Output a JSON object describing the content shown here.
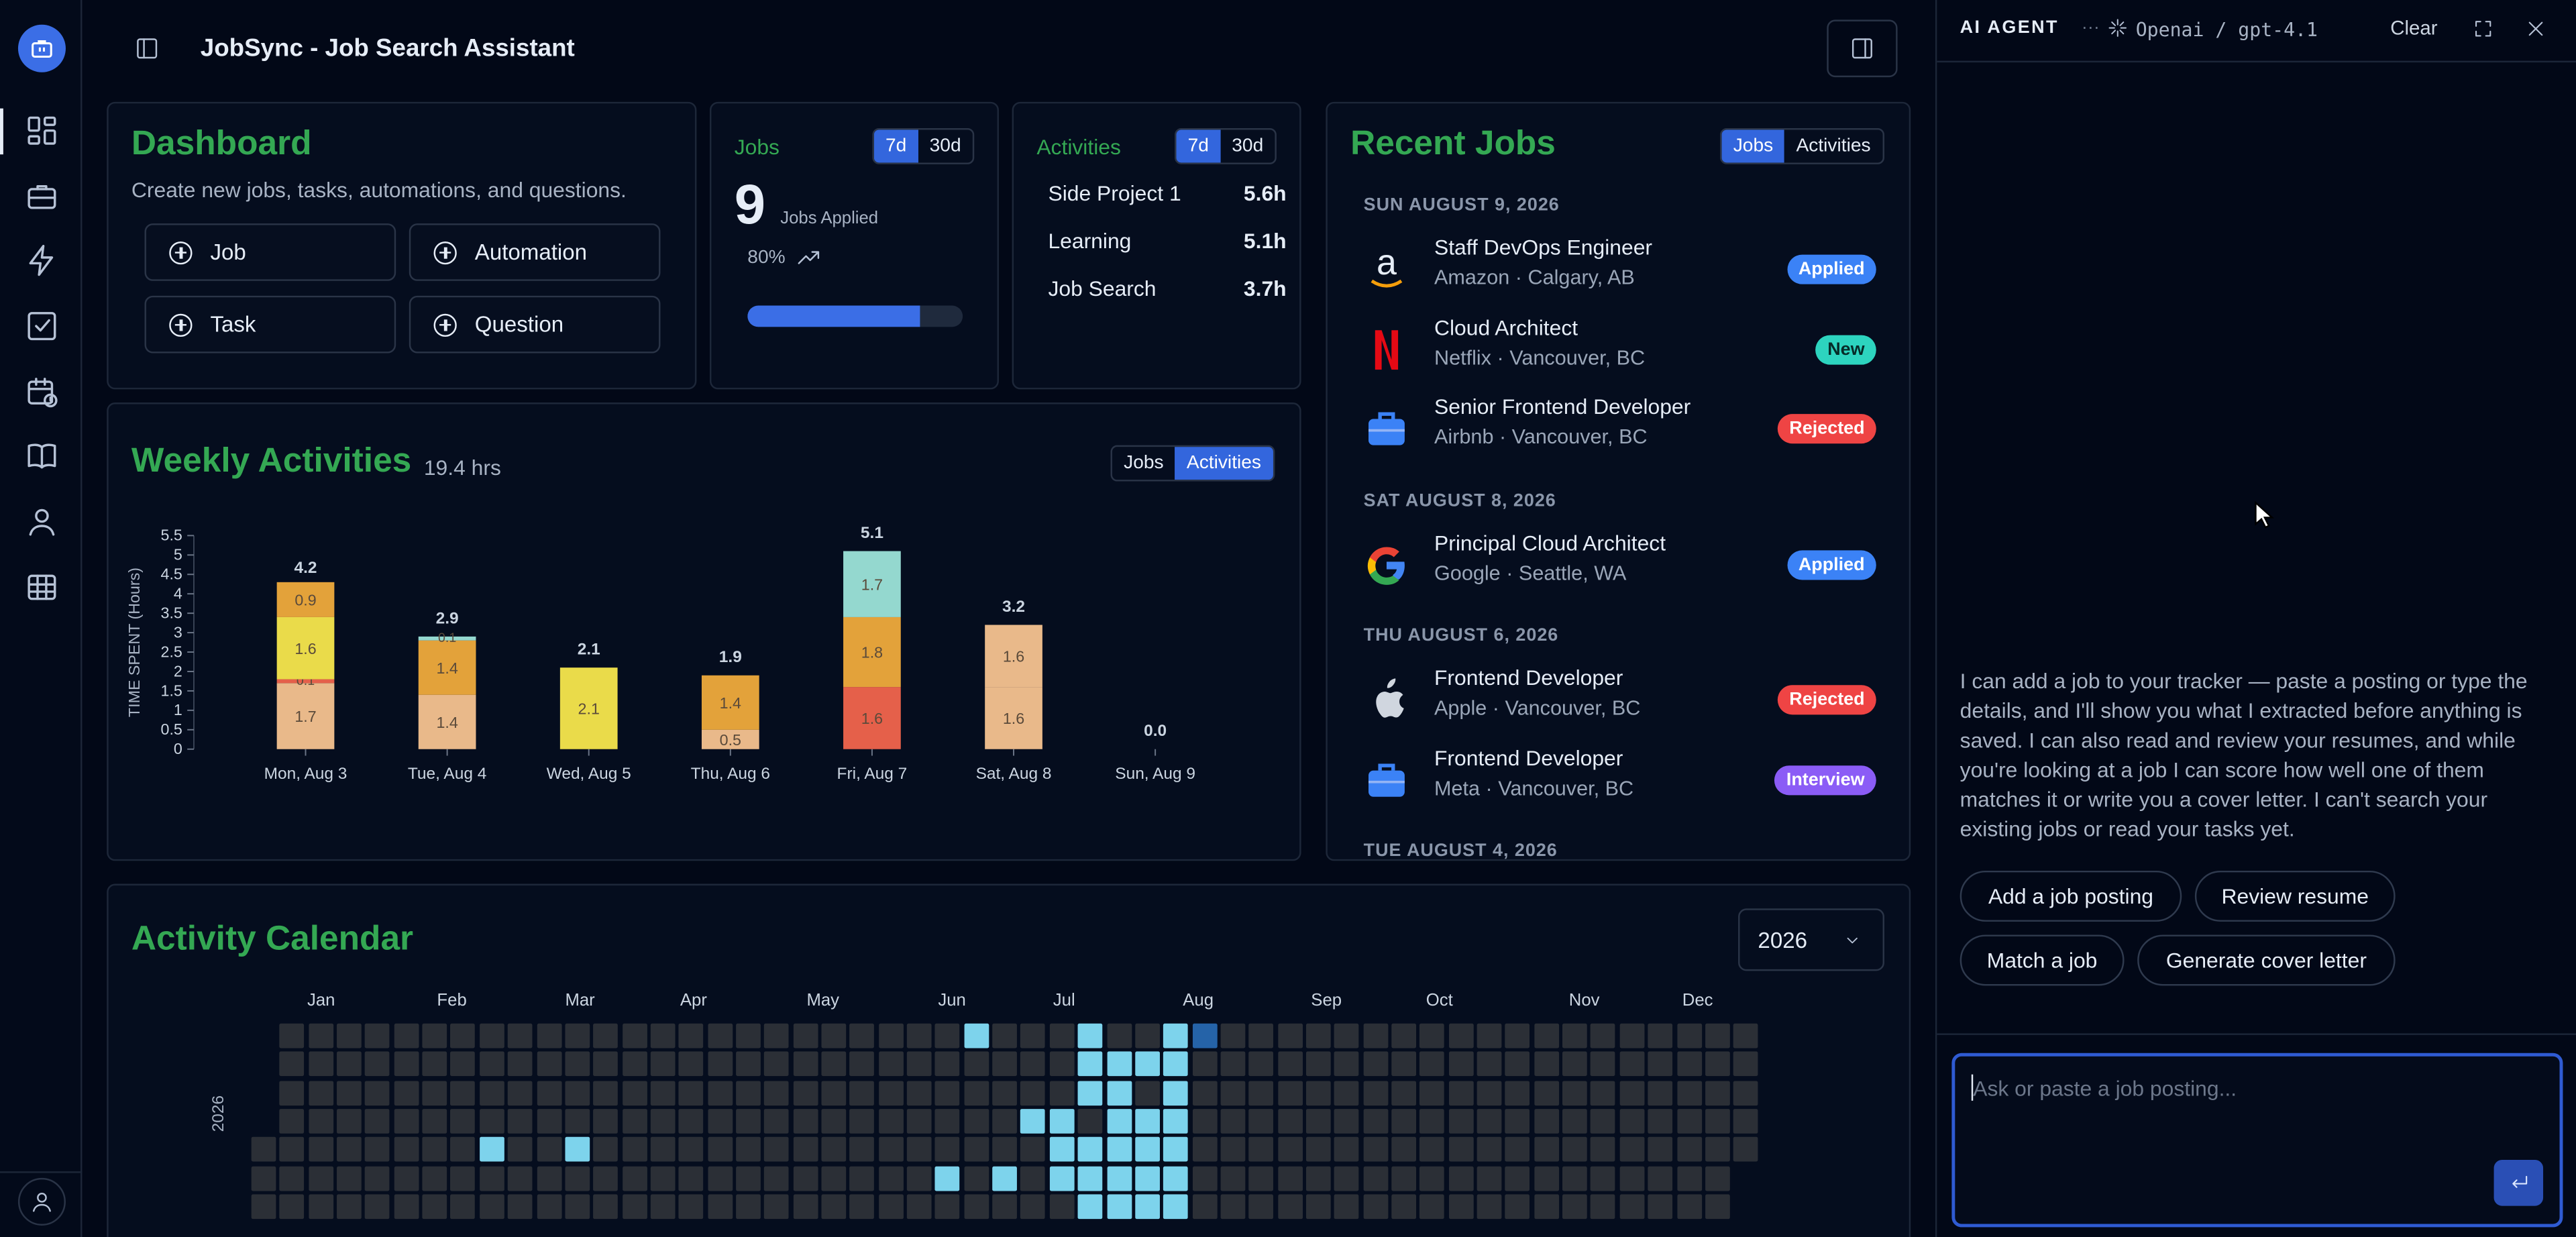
{
  "app": {
    "title": "JobSync - Job Search Assistant"
  },
  "sidebar": {
    "items": [
      "dashboard",
      "jobs",
      "automations",
      "tasks",
      "activities",
      "questions",
      "profile",
      "admin"
    ]
  },
  "dashboard": {
    "title": "Dashboard",
    "subtitle": "Create new jobs, tasks, automations, and questions.",
    "buttons": [
      "Job",
      "Automation",
      "Task",
      "Question"
    ]
  },
  "jobs_card": {
    "title": "Jobs",
    "tabs": [
      "7d",
      "30d"
    ],
    "count": "9",
    "count_label": "Jobs Applied",
    "percent": "80%",
    "progress": 0.8
  },
  "activities_card": {
    "title": "Activities",
    "tabs": [
      "7d",
      "30d"
    ],
    "rows": [
      {
        "label": "Side Project 1",
        "value": "5.6h"
      },
      {
        "label": "Learning",
        "value": "5.1h"
      },
      {
        "label": "Job Search",
        "value": "3.7h"
      }
    ]
  },
  "recent": {
    "title": "Recent Jobs",
    "tabs": [
      "Jobs",
      "Activities"
    ],
    "groups": [
      {
        "date": "SUN AUGUST 9, 2026",
        "jobs": [
          {
            "title": "Staff DevOps Engineer",
            "sub": "Amazon · Calgary, AB",
            "status": "Applied",
            "logo": "amazon-logo"
          },
          {
            "title": "Cloud Architect",
            "sub": "Netflix · Vancouver, BC",
            "status": "New",
            "logo": "netflix-logo"
          },
          {
            "title": "Senior Frontend Developer",
            "sub": "Airbnb · Vancouver, BC",
            "status": "Rejected",
            "logo": "briefcase-logo"
          }
        ]
      },
      {
        "date": "SAT AUGUST 8, 2026",
        "jobs": [
          {
            "title": "Principal Cloud Architect",
            "sub": "Google · Seattle, WA",
            "status": "Applied",
            "logo": "google-logo"
          }
        ]
      },
      {
        "date": "THU AUGUST 6, 2026",
        "jobs": [
          {
            "title": "Frontend Developer",
            "sub": "Apple · Vancouver, BC",
            "status": "Rejected",
            "logo": "apple-logo"
          },
          {
            "title": "Frontend Developer",
            "sub": "Meta · Vancouver, BC",
            "status": "Interview",
            "logo": "briefcase-logo"
          }
        ]
      },
      {
        "date": "TUE AUGUST 4, 2026",
        "jobs": []
      }
    ],
    "status_colors": {
      "Applied": "#3b82f6",
      "New": "#2dd4bf",
      "Rejected": "#ef4444",
      "Interview": "#8b5cf6"
    }
  },
  "weekly": {
    "title": "Weekly Activities",
    "total": "19.4 hrs",
    "tabs": [
      "Jobs",
      "Activities"
    ],
    "ylabel": "TIME SPENT (Hours)"
  },
  "chart_data": {
    "type": "bar",
    "stacked": true,
    "categories": [
      "Mon, Aug 3",
      "Tue, Aug 4",
      "Wed, Aug 5",
      "Thu, Aug 6",
      "Fri, Aug 7",
      "Sat, Aug 8",
      "Sun, Aug 9"
    ],
    "totals": [
      "4.2",
      "2.9",
      "2.1",
      "1.9",
      "5.1",
      "3.2",
      "0.0"
    ],
    "ylim": [
      0,
      5.5
    ],
    "yticks": [
      "0",
      "0.5",
      "1",
      "1.5",
      "2",
      "2.5",
      "3",
      "3.5",
      "4",
      "4.5",
      "5",
      "5.5"
    ],
    "ylabel": "TIME SPENT (Hours)",
    "stacks": [
      [
        {
          "v": 1.7,
          "c": "#e9b98a",
          "l": "1.7"
        },
        {
          "v": 0.1,
          "c": "#e5604a",
          "l": "0.1"
        },
        {
          "v": 1.6,
          "c": "#eadb4a",
          "l": "1.6"
        },
        {
          "v": 0.9,
          "c": "#e3a23a",
          "l": "0.9"
        }
      ],
      [
        {
          "v": 1.4,
          "c": "#e9b98a",
          "l": "1.4"
        },
        {
          "v": 1.4,
          "c": "#e3a23a",
          "l": "1.4"
        },
        {
          "v": 0.1,
          "c": "#94d8cf",
          "l": "0.1"
        }
      ],
      [
        {
          "v": 2.1,
          "c": "#eadb4a",
          "l": "2.1"
        }
      ],
      [
        {
          "v": 0.5,
          "c": "#e9b98a",
          "l": "0.5"
        },
        {
          "v": 1.4,
          "c": "#e3a23a",
          "l": "1.4"
        }
      ],
      [
        {
          "v": 1.6,
          "c": "#e5604a",
          "l": "1.6"
        },
        {
          "v": 1.8,
          "c": "#e3a23a",
          "l": "1.8"
        },
        {
          "v": 1.7,
          "c": "#94d8cf",
          "l": "1.7"
        }
      ],
      [
        {
          "v": 1.6,
          "c": "#e9b98a",
          "l": "1.6"
        },
        {
          "v": 1.6,
          "c": "#e9b98a",
          "l": "1.6"
        }
      ],
      []
    ]
  },
  "calendar": {
    "title": "Activity Calendar",
    "year": "2026",
    "months": [
      "Jan",
      "Feb",
      "Mar",
      "Apr",
      "May",
      "Jun",
      "Jul",
      "Aug",
      "Sep",
      "Oct",
      "Nov",
      "Dec"
    ],
    "row_label": "2026",
    "active": [
      [
        24,
        0
      ],
      [
        28,
        0
      ],
      [
        31,
        0
      ],
      [
        32,
        0
      ],
      [
        28,
        1
      ],
      [
        29,
        1
      ],
      [
        30,
        1
      ],
      [
        31,
        1
      ],
      [
        28,
        2
      ],
      [
        29,
        2
      ],
      [
        31,
        2
      ],
      [
        26,
        3
      ],
      [
        27,
        3
      ],
      [
        29,
        3
      ],
      [
        30,
        3
      ],
      [
        31,
        3
      ],
      [
        7,
        4
      ],
      [
        10,
        4
      ],
      [
        27,
        4
      ],
      [
        28,
        4
      ],
      [
        29,
        4
      ],
      [
        30,
        4
      ],
      [
        31,
        4
      ],
      [
        23,
        5
      ],
      [
        25,
        5
      ],
      [
        27,
        5
      ],
      [
        28,
        5
      ],
      [
        29,
        5
      ],
      [
        30,
        5
      ],
      [
        31,
        5
      ],
      [
        28,
        6
      ],
      [
        29,
        6
      ],
      [
        30,
        6
      ],
      [
        31,
        6
      ]
    ],
    "dark_active": [
      [
        32,
        0
      ]
    ]
  },
  "agent": {
    "title": "AI AGENT",
    "model": "Openai / gpt-4.1",
    "clear": "Clear",
    "message": "I can add a job to your tracker — paste a posting or type the details, and I'll show you what I extracted before anything is saved. I can also read and review your resumes, and while you're looking at a job I can score how well one of them matches it or write you a cover letter. I can't search your existing jobs or read your tasks yet.",
    "chips": [
      "Add a job posting",
      "Review resume",
      "Match a job",
      "Generate cover letter"
    ],
    "input_placeholder": "Ask or paste a job posting..."
  }
}
